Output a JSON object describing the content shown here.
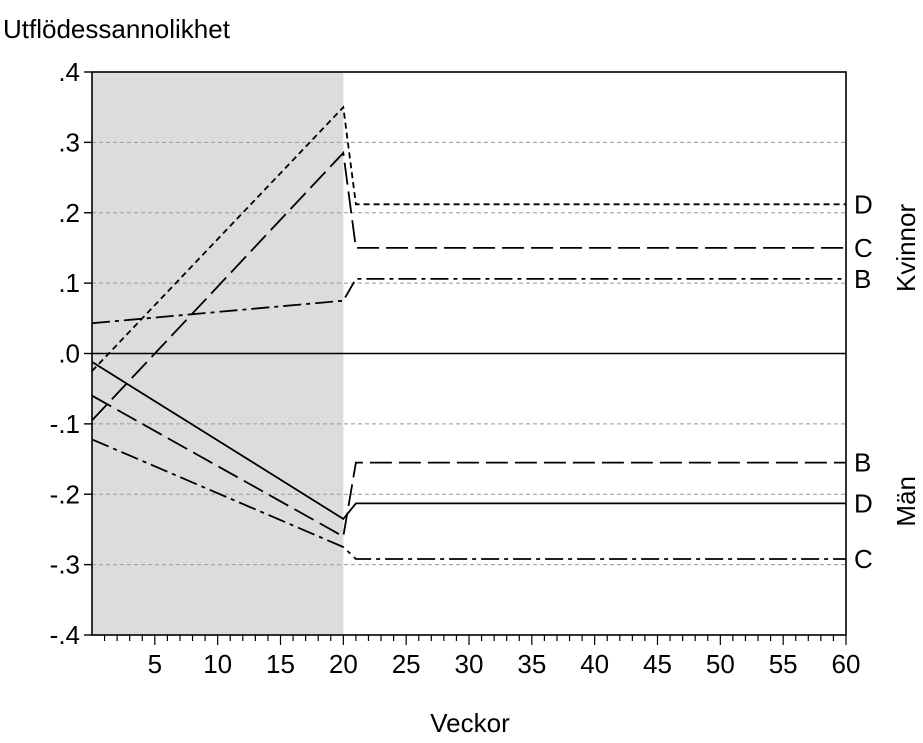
{
  "chart_data": {
    "type": "line",
    "title": "",
    "ylabel": "Utflödessannolikhet",
    "xlabel": "Veckor",
    "xlim": [
      0,
      60
    ],
    "ylim": [
      -0.4,
      0.4
    ],
    "x_ticks": [
      "5",
      "10",
      "15",
      "20",
      "25",
      "30",
      "35",
      "40",
      "45",
      "50",
      "55",
      "60"
    ],
    "x_tick_values": [
      5,
      10,
      15,
      20,
      25,
      30,
      35,
      40,
      45,
      50,
      55,
      60
    ],
    "y_ticks": [
      ".4",
      ".3",
      ".2",
      ".1",
      ".0",
      "-.1",
      "-.2",
      "-.3",
      "-.4"
    ],
    "y_tick_values": [
      0.4,
      0.3,
      0.2,
      0.1,
      0.0,
      -0.1,
      -0.2,
      -0.3,
      -0.4
    ],
    "shaded_region": {
      "x": [
        0,
        20
      ],
      "color": "#dcdcdc"
    },
    "zero_line": true,
    "grid": "horizontal dashed at 0.1 steps",
    "group_labels": [
      {
        "text": "Kvinnor",
        "y": 0.15
      },
      {
        "text": "Män",
        "y": -0.21
      }
    ],
    "series": [
      {
        "group": "Kvinnor",
        "label": "D",
        "style": "short-dash",
        "x": [
          0,
          20,
          21,
          60
        ],
        "y": [
          -0.025,
          0.35,
          0.212,
          0.212
        ]
      },
      {
        "group": "Kvinnor",
        "label": "C",
        "style": "long-dash",
        "x": [
          0,
          20,
          21,
          60
        ],
        "y": [
          -0.095,
          0.285,
          0.15,
          0.15
        ]
      },
      {
        "group": "Kvinnor",
        "label": "B",
        "style": "dash-dot",
        "x": [
          0,
          20,
          21,
          60
        ],
        "y": [
          0.043,
          0.075,
          0.106,
          0.106
        ]
      },
      {
        "group": "Män",
        "label": "B",
        "style": "long-dash",
        "x": [
          0,
          20,
          21,
          60
        ],
        "y": [
          -0.06,
          -0.26,
          -0.155,
          -0.155
        ]
      },
      {
        "group": "Män",
        "label": "D",
        "style": "solid",
        "x": [
          0,
          20,
          21,
          60
        ],
        "y": [
          -0.012,
          -0.235,
          -0.213,
          -0.213
        ]
      },
      {
        "group": "Män",
        "label": "C",
        "style": "dash-dot",
        "x": [
          0,
          20,
          21,
          60
        ],
        "y": [
          -0.122,
          -0.275,
          -0.292,
          -0.292
        ]
      }
    ],
    "end_label_y": [
      0.212,
      0.15,
      0.106,
      -0.155,
      -0.213,
      -0.292
    ]
  }
}
